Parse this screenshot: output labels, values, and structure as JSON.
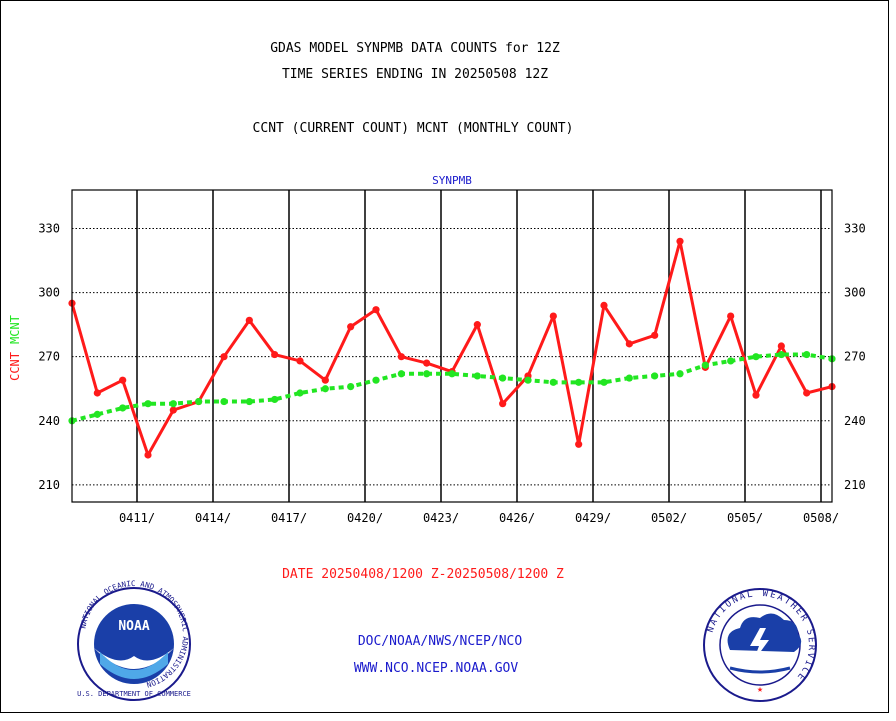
{
  "title_lines": [
    "GDAS MODEL SYNPMB DATA COUNTS for 12Z",
    "TIME SERIES ENDING IN 20250508 12Z"
  ],
  "legend_text": "CCNT (CURRENT COUNT) MCNT (MONTHLY COUNT)",
  "colors": {
    "ccnt": "#ff1a1a",
    "mcnt": "#22e622",
    "text": "#000000",
    "blue": "#1a1acc",
    "red_text": "#ff1a1a"
  },
  "chart_data": {
    "type": "line",
    "title": "SYNPMB",
    "ylabel_ccnt": "CCNT",
    "ylabel_mcnt": "MCNT",
    "xlabel": "DATE 20250408/1200 Z-20250508/1200 Z",
    "y_ticks": [
      210,
      240,
      270,
      300,
      330
    ],
    "ylim": [
      202,
      348
    ],
    "xlim": [
      0,
      30
    ],
    "grid": true,
    "x_ticks": [
      {
        "day": 3,
        "label": "0411/"
      },
      {
        "day": 6,
        "label": "0414/"
      },
      {
        "day": 9,
        "label": "0417/"
      },
      {
        "day": 12,
        "label": "0420/"
      },
      {
        "day": 15,
        "label": "0423/"
      },
      {
        "day": 18,
        "label": "0426/"
      },
      {
        "day": 21,
        "label": "0429/"
      },
      {
        "day": 24,
        "label": "0502/"
      },
      {
        "day": 27,
        "label": "0505/"
      },
      {
        "day": 30,
        "label": "0508/"
      }
    ],
    "series": [
      {
        "name": "CCNT",
        "color": "#ff1a1a",
        "values": [
          295,
          253,
          259,
          224,
          245,
          249,
          270,
          287,
          271,
          268,
          259,
          284,
          292,
          270,
          267,
          263,
          285,
          248,
          261,
          289,
          229,
          294,
          276,
          280,
          324,
          265,
          289,
          252,
          275,
          253,
          256
        ]
      },
      {
        "name": "MCNT",
        "color": "#22e622",
        "values": [
          240,
          243,
          246,
          248,
          248,
          249,
          249,
          249,
          250,
          253,
          255,
          256,
          259,
          262,
          262,
          262,
          261,
          260,
          259,
          258,
          258,
          258,
          260,
          261,
          262,
          266,
          268,
          270,
          271,
          271,
          269
        ]
      }
    ]
  },
  "footer": {
    "line1": "DOC/NOAA/NWS/NCEP/NCO",
    "line2": "WWW.NCO.NCEP.NOAA.GOV"
  },
  "logos": {
    "left_name": "NOAA",
    "left_ring": "NATIONAL OCEANIC AND ATMOSPHERIC ADMINISTRATION",
    "left_bottom": "U.S. DEPARTMENT OF COMMERCE",
    "right_ring": "NATIONAL WEATHER SERVICE"
  }
}
